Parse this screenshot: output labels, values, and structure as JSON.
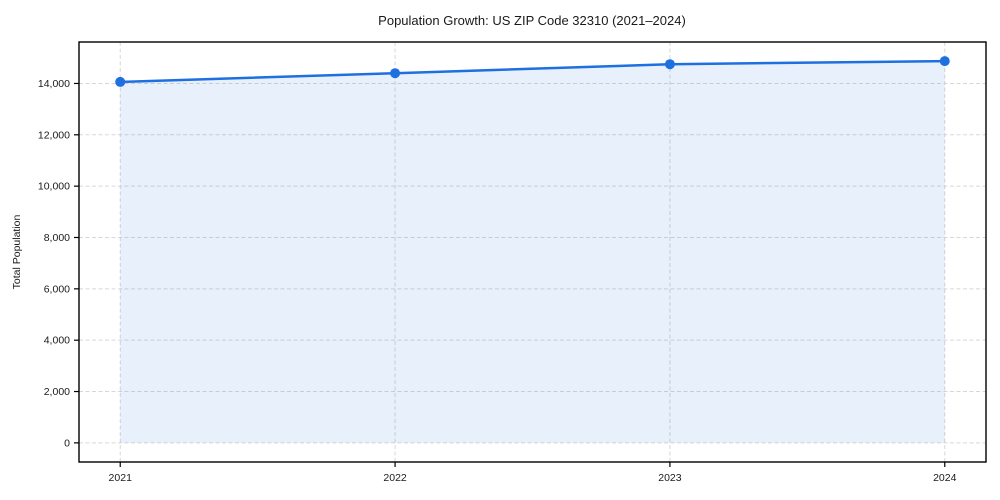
{
  "chart_data": {
    "type": "area",
    "title": "Population Growth: US ZIP Code 32310 (2021–2024)",
    "xlabel": "",
    "ylabel": "Total Population",
    "x": [
      2021,
      2022,
      2023,
      2024
    ],
    "series": [
      {
        "name": "Total Population",
        "values": [
          14060,
          14400,
          14750,
          14870
        ]
      }
    ],
    "x_tick_labels": [
      "2021",
      "2022",
      "2023",
      "2024"
    ],
    "y_ticks": [
      0,
      2000,
      4000,
      6000,
      8000,
      10000,
      12000,
      14000
    ],
    "y_tick_labels": [
      "0",
      "2,000",
      "4,000",
      "6,000",
      "8,000",
      "10,000",
      "12,000",
      "14,000"
    ],
    "xlim": [
      2020.85,
      2024.15
    ],
    "ylim": [
      -745,
      15615
    ],
    "grid": true,
    "grid_style": "dashed",
    "legend_position": "none",
    "colors": {
      "line": "#1e6fe0",
      "marker": "#1e6fe0",
      "fill": "rgba(30, 111, 224, 0.10)",
      "grid": "#d7d7d7",
      "spine": "#000000",
      "text": "#1a1a1a",
      "background": "#ffffff"
    },
    "marker": "circle",
    "marker_radius": 5,
    "line_width": 2.5
  }
}
